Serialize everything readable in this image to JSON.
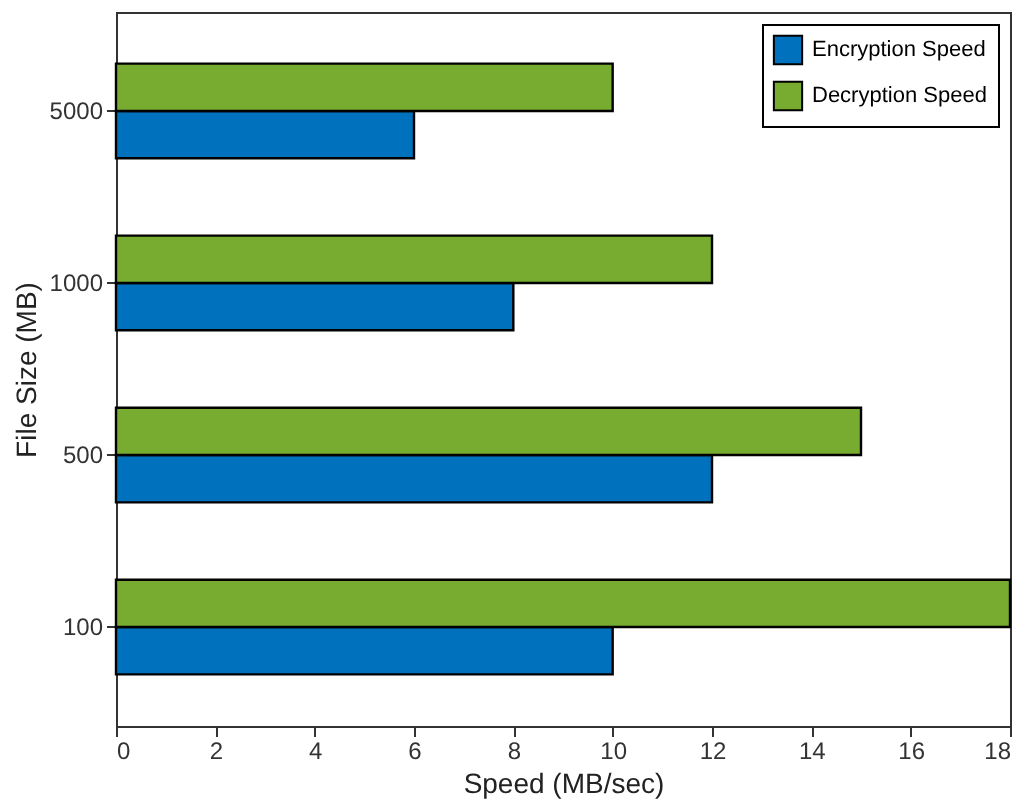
{
  "chart_data": {
    "type": "bar",
    "orientation": "horizontal",
    "xlabel": "Speed (MB/sec)",
    "ylabel": "File Size (MB)",
    "categories": [
      "5000",
      "1000",
      "500",
      "100"
    ],
    "series": [
      {
        "name": "Encryption Speed",
        "color": "#0072bd",
        "values": [
          6,
          8,
          12,
          10
        ]
      },
      {
        "name": "Decryption Speed",
        "color": "#77ac30",
        "values": [
          10,
          12,
          15,
          18
        ]
      }
    ],
    "xlim": [
      0,
      18
    ],
    "xticks": [
      0,
      2,
      4,
      6,
      8,
      10,
      12,
      14,
      16,
      18
    ],
    "legend": "top right"
  }
}
